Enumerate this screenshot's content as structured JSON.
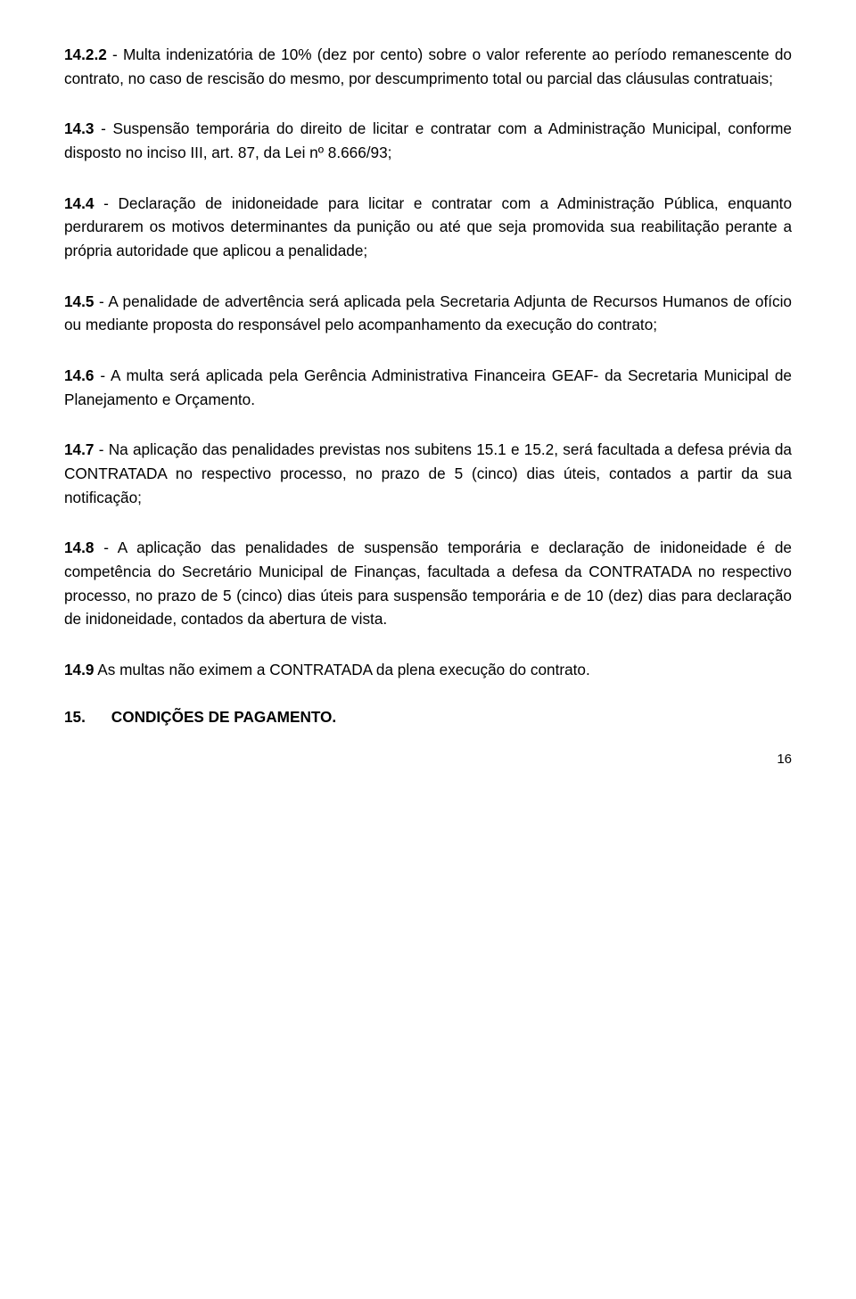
{
  "paragraphs": {
    "p1": {
      "lead": "14.2.2",
      "text": " - Multa indenizatória de 10% (dez por cento) sobre o valor referente ao período remanescente do contrato, no caso de rescisão do mesmo, por descumprimento total ou parcial das cláusulas contratuais;"
    },
    "p2": {
      "lead": "14.3",
      "text": " - Suspensão temporária do direito de licitar e contratar com a Administração Municipal, conforme disposto no inciso III, art. 87, da Lei nº 8.666/93;"
    },
    "p3": {
      "lead": "14.4",
      "text": " - Declaração de inidoneidade para licitar e contratar com a Administração Pública, enquanto perdurarem os motivos determinantes da punição ou até que seja promovida sua reabilitação perante a própria autoridade que aplicou a penalidade;"
    },
    "p4": {
      "lead": "14.5",
      "text": " - A penalidade de advertência será aplicada pela Secretaria Adjunta de Recursos Humanos de ofício ou mediante proposta do responsável pelo acompanhamento da execução do contrato;"
    },
    "p5": {
      "lead": "14.6",
      "text": " - A multa será aplicada pela Gerência Administrativa Financeira GEAF- da Secretaria Municipal de Planejamento e Orçamento."
    },
    "p6": {
      "lead": "14.7",
      "text": " - Na aplicação das penalidades previstas nos subitens 15.1 e 15.2, será facultada a defesa prévia da CONTRATADA no respectivo processo, no prazo de 5 (cinco) dias úteis, contados a partir da sua notificação;"
    },
    "p7": {
      "lead": "14.8",
      "text": " - A aplicação das penalidades de suspensão temporária e declaração de inidoneidade é de competência do Secretário Municipal de Finanças, facultada a defesa da CONTRATADA no respectivo processo, no prazo de 5 (cinco) dias úteis para suspensão temporária e de 10 (dez) dias para declaração de inidoneidade, contados da abertura de vista."
    },
    "p8": {
      "lead": "14.9",
      "text": "  As multas não eximem a CONTRATADA da plena execução do contrato."
    }
  },
  "section": {
    "num": "15.",
    "title": "CONDIÇÕES DE PAGAMENTO."
  },
  "page_number": "16"
}
